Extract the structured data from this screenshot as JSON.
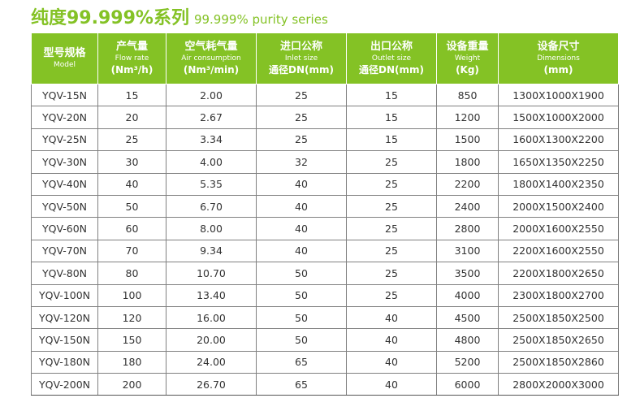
{
  "title": {
    "main": "纯度99.999%系列",
    "sub": "99.999% purity series"
  },
  "colors": {
    "accent": "#84c225",
    "grid": "#808080",
    "text": "#333333"
  },
  "table": {
    "headers": [
      {
        "zh": "型号规格",
        "en": "Model",
        "unit": ""
      },
      {
        "zh": "产气量",
        "en": "Flow rate",
        "unit": "(Nm³/h)"
      },
      {
        "zh": "空气耗气量",
        "en": "Air consumption",
        "unit": "(Nm³/min)"
      },
      {
        "zh": "进口公称",
        "en": "Inlet size",
        "unit": "通径DN(mm)"
      },
      {
        "zh": "出口公称",
        "en": "Outlet size",
        "unit": "通径DN(mm)"
      },
      {
        "zh": "设备重量",
        "en": "Weight",
        "unit": "(Kg)"
      },
      {
        "zh": "设备尺寸",
        "en": "Dimensions",
        "unit": "(mm)"
      }
    ],
    "rows": [
      [
        "YQV-15N",
        "15",
        "2.00",
        "25",
        "15",
        "850",
        "1300X1000X1900"
      ],
      [
        "YQV-20N",
        "20",
        "2.67",
        "25",
        "15",
        "1200",
        "1500X1000X2000"
      ],
      [
        "YQV-25N",
        "25",
        "3.34",
        "25",
        "15",
        "1500",
        "1600X1300X2200"
      ],
      [
        "YQV-30N",
        "30",
        "4.00",
        "32",
        "25",
        "1800",
        "1650X1350X2250"
      ],
      [
        "YQV-40N",
        "40",
        "5.35",
        "40",
        "25",
        "2200",
        "1800X1400X2350"
      ],
      [
        "YQV-50N",
        "50",
        "6.70",
        "40",
        "25",
        "2400",
        "2000X1500X2400"
      ],
      [
        "YQV-60N",
        "60",
        "8.00",
        "40",
        "25",
        "2800",
        "2000X1600X2550"
      ],
      [
        "YQV-70N",
        "70",
        "9.34",
        "40",
        "25",
        "3100",
        "2200X1600X2550"
      ],
      [
        "YQV-80N",
        "80",
        "10.70",
        "50",
        "25",
        "3500",
        "2200X1800X2650"
      ],
      [
        "YQV-100N",
        "100",
        "13.40",
        "50",
        "25",
        "4000",
        "2300X1800X2700"
      ],
      [
        "YQV-120N",
        "120",
        "16.00",
        "50",
        "40",
        "4500",
        "2500X1850X2500"
      ],
      [
        "YQV-150N",
        "150",
        "20.00",
        "50",
        "40",
        "4800",
        "2500X1850X2650"
      ],
      [
        "YQV-180N",
        "180",
        "24.00",
        "65",
        "40",
        "5200",
        "2500X1850X2860"
      ],
      [
        "YQV-200N",
        "200",
        "26.70",
        "65",
        "40",
        "6000",
        "2800X2000X3000"
      ]
    ]
  }
}
